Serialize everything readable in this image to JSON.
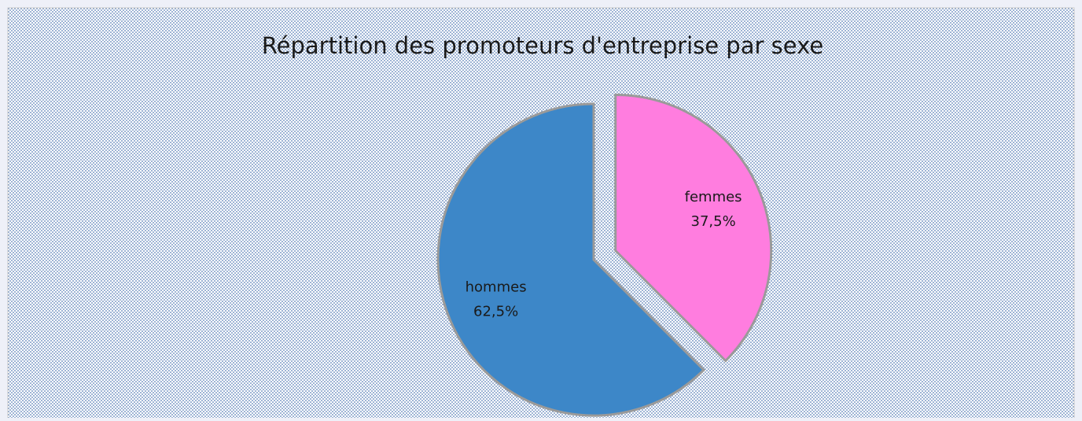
{
  "chart_data": {
    "type": "pie",
    "title": "Répartition des promoteurs d'entreprise par sexe",
    "categories": [
      "femmes",
      "hommes"
    ],
    "values": [
      37.5,
      62.5
    ],
    "value_labels": [
      "37,5%",
      "62,5%"
    ],
    "colors": [
      "#ff7ddf",
      "#3d87c8"
    ],
    "exploded": [
      true,
      false
    ]
  }
}
